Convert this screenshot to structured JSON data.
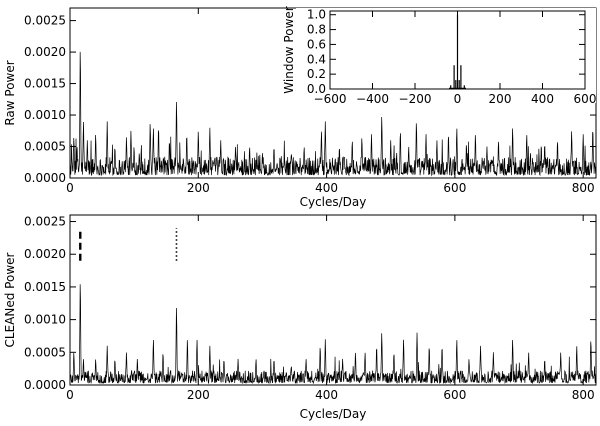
{
  "chart_data": [
    {
      "type": "line",
      "panel": "raw",
      "xlabel": "Cycles/Day",
      "ylabel": "Raw  Power",
      "xlim": [
        0,
        820
      ],
      "ylim": [
        0,
        0.0027
      ],
      "xticks": [
        0,
        200,
        400,
        600,
        800
      ],
      "xtick_labels": [
        "0",
        "200",
        "400",
        "600",
        "800"
      ],
      "yticks": [
        0,
        0.0005,
        0.001,
        0.0015,
        0.002,
        0.0025
      ],
      "ytick_labels": [
        "0.0000",
        "0.0005",
        "0.0010",
        "0.0015",
        "0.0020",
        "0.0025"
      ],
      "noise_level": 0.00018,
      "peaks": [
        {
          "x": 6,
          "y": 0.00065
        },
        {
          "x": 11,
          "y": 0.0005
        },
        {
          "x": 16,
          "y": 0.00208
        },
        {
          "x": 21,
          "y": 0.0009
        },
        {
          "x": 27,
          "y": 0.0006
        },
        {
          "x": 40,
          "y": 0.0007
        },
        {
          "x": 58,
          "y": 0.0009
        },
        {
          "x": 70,
          "y": 0.0005
        },
        {
          "x": 88,
          "y": 0.00065
        },
        {
          "x": 95,
          "y": 0.00075
        },
        {
          "x": 108,
          "y": 0.0004
        },
        {
          "x": 125,
          "y": 0.00088
        },
        {
          "x": 130,
          "y": 0.0008
        },
        {
          "x": 138,
          "y": 0.00082
        },
        {
          "x": 155,
          "y": 0.0006
        },
        {
          "x": 166,
          "y": 0.00123
        },
        {
          "x": 182,
          "y": 0.0007
        },
        {
          "x": 200,
          "y": 0.00075
        },
        {
          "x": 218,
          "y": 0.0008
        },
        {
          "x": 235,
          "y": 0.0006
        },
        {
          "x": 258,
          "y": 0.0005
        },
        {
          "x": 280,
          "y": 0.0005
        },
        {
          "x": 300,
          "y": 0.0004
        },
        {
          "x": 318,
          "y": 0.0005
        },
        {
          "x": 345,
          "y": 0.0004
        },
        {
          "x": 365,
          "y": 0.0005
        },
        {
          "x": 392,
          "y": 0.00075
        },
        {
          "x": 398,
          "y": 0.0009
        },
        {
          "x": 420,
          "y": 0.0005
        },
        {
          "x": 440,
          "y": 0.0006
        },
        {
          "x": 455,
          "y": 0.00065
        },
        {
          "x": 470,
          "y": 0.0007
        },
        {
          "x": 486,
          "y": 0.00098
        },
        {
          "x": 500,
          "y": 0.0006
        },
        {
          "x": 515,
          "y": 0.00075
        },
        {
          "x": 528,
          "y": 0.0005
        },
        {
          "x": 540,
          "y": 0.0009
        },
        {
          "x": 555,
          "y": 0.0007
        },
        {
          "x": 572,
          "y": 0.0006
        },
        {
          "x": 590,
          "y": 0.0007
        },
        {
          "x": 603,
          "y": 0.0008
        },
        {
          "x": 618,
          "y": 0.00055
        },
        {
          "x": 632,
          "y": 0.0007
        },
        {
          "x": 650,
          "y": 0.0005
        },
        {
          "x": 668,
          "y": 0.0006
        },
        {
          "x": 690,
          "y": 0.0008
        },
        {
          "x": 712,
          "y": 0.0007
        },
        {
          "x": 740,
          "y": 0.00055
        },
        {
          "x": 760,
          "y": 0.0006
        },
        {
          "x": 782,
          "y": 0.00075
        },
        {
          "x": 800,
          "y": 0.0007
        },
        {
          "x": 815,
          "y": 0.0008
        }
      ],
      "inset": {
        "type": "line",
        "ylabel": "Window  Power",
        "xlim": [
          -600,
          600
        ],
        "ylim": [
          0,
          1.05
        ],
        "xticks": [
          -600,
          -400,
          -200,
          0,
          200,
          400,
          600
        ],
        "xtick_labels": [
          "−600",
          "−400",
          "−200",
          "0",
          "200",
          "400",
          "600"
        ],
        "yticks": [
          0,
          0.2,
          0.4,
          0.6,
          0.8,
          1.0
        ],
        "ytick_labels": [
          "0.0",
          "0.2",
          "0.4",
          "0.6",
          "0.8",
          "1.0"
        ],
        "peaks": [
          {
            "x": 0,
            "y": 1.0
          },
          {
            "x": -16,
            "y": 0.32
          },
          {
            "x": 16,
            "y": 0.32
          },
          {
            "x": -32,
            "y": 0.05
          },
          {
            "x": 32,
            "y": 0.05
          },
          {
            "x": -8,
            "y": 0.12
          },
          {
            "x": 8,
            "y": 0.12
          }
        ]
      }
    },
    {
      "type": "line",
      "panel": "cleaned",
      "xlabel": "Cycles/Day",
      "ylabel": "CLEANed  Power",
      "xlim": [
        0,
        820
      ],
      "ylim": [
        0,
        0.0026
      ],
      "xticks": [
        0,
        200,
        400,
        600,
        800
      ],
      "xtick_labels": [
        "0",
        "200",
        "400",
        "600",
        "800"
      ],
      "yticks": [
        0,
        0.0005,
        0.001,
        0.0015,
        0.002,
        0.0025
      ],
      "ytick_labels": [
        "0.0000",
        "0.0005",
        "0.0010",
        "0.0015",
        "0.0020",
        "0.0025"
      ],
      "noise_level": 0.00012,
      "peaks": [
        {
          "x": 6,
          "y": 0.0005
        },
        {
          "x": 16,
          "y": 0.0016
        },
        {
          "x": 21,
          "y": 0.0004
        },
        {
          "x": 40,
          "y": 0.0004
        },
        {
          "x": 58,
          "y": 0.0006
        },
        {
          "x": 70,
          "y": 0.0004
        },
        {
          "x": 88,
          "y": 0.0005
        },
        {
          "x": 105,
          "y": 0.0004
        },
        {
          "x": 130,
          "y": 0.0007
        },
        {
          "x": 145,
          "y": 0.0005
        },
        {
          "x": 166,
          "y": 0.0012
        },
        {
          "x": 183,
          "y": 0.0007
        },
        {
          "x": 198,
          "y": 0.0007
        },
        {
          "x": 218,
          "y": 0.0006
        },
        {
          "x": 240,
          "y": 0.0004
        },
        {
          "x": 262,
          "y": 0.0004
        },
        {
          "x": 290,
          "y": 0.0004
        },
        {
          "x": 318,
          "y": 0.0004
        },
        {
          "x": 345,
          "y": 0.0003
        },
        {
          "x": 368,
          "y": 0.0004
        },
        {
          "x": 390,
          "y": 0.0006
        },
        {
          "x": 398,
          "y": 0.0007
        },
        {
          "x": 425,
          "y": 0.0004
        },
        {
          "x": 445,
          "y": 0.0005
        },
        {
          "x": 460,
          "y": 0.0005
        },
        {
          "x": 478,
          "y": 0.0006
        },
        {
          "x": 486,
          "y": 0.0008
        },
        {
          "x": 505,
          "y": 0.0005
        },
        {
          "x": 520,
          "y": 0.0007
        },
        {
          "x": 541,
          "y": 0.0008
        },
        {
          "x": 560,
          "y": 0.0006
        },
        {
          "x": 580,
          "y": 0.0006
        },
        {
          "x": 603,
          "y": 0.0007
        },
        {
          "x": 622,
          "y": 0.0004
        },
        {
          "x": 640,
          "y": 0.0006
        },
        {
          "x": 660,
          "y": 0.0005
        },
        {
          "x": 690,
          "y": 0.0007
        },
        {
          "x": 715,
          "y": 0.0005
        },
        {
          "x": 740,
          "y": 0.0004
        },
        {
          "x": 765,
          "y": 0.0005
        },
        {
          "x": 790,
          "y": 0.0006
        },
        {
          "x": 812,
          "y": 0.0007
        }
      ],
      "markers": [
        {
          "x": 16,
          "y_from": 0.0019,
          "y_to": 0.0024,
          "style": "dashed"
        },
        {
          "x": 166,
          "y_from": 0.0019,
          "y_to": 0.0024,
          "style": "dotted"
        }
      ]
    }
  ]
}
